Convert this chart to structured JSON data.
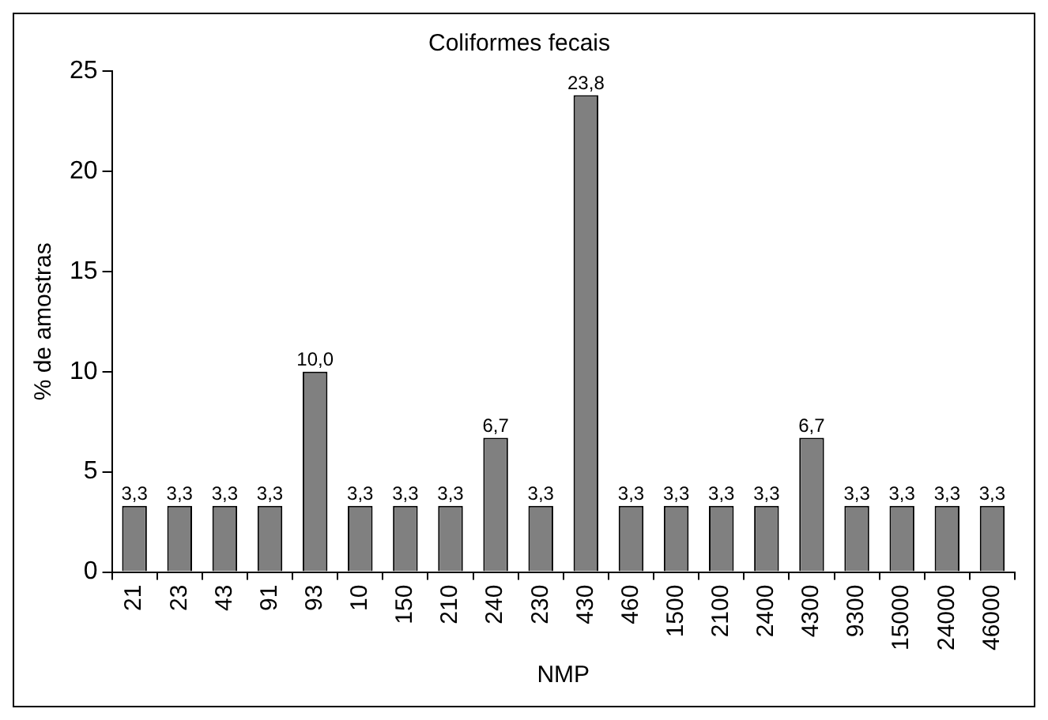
{
  "chart_data": {
    "type": "bar",
    "title": "Coliformes fecais",
    "xlabel": "NMP",
    "ylabel": "% de amostras",
    "categories": [
      "21",
      "23",
      "43",
      "91",
      "93",
      "10",
      "150",
      "210",
      "240",
      "230",
      "430",
      "460",
      "1500",
      "2100",
      "2400",
      "4300",
      "9300",
      "15000",
      "24000",
      "46000"
    ],
    "values": [
      3.3,
      3.3,
      3.3,
      3.3,
      10.0,
      3.3,
      3.3,
      3.3,
      6.7,
      3.3,
      23.8,
      3.3,
      3.3,
      3.3,
      3.3,
      6.7,
      3.3,
      3.3,
      3.3,
      3.3
    ],
    "value_labels": [
      "3,3",
      "3,3",
      "3,3",
      "3,3",
      "10,0",
      "3,3",
      "3,3",
      "3,3",
      "6,7",
      "3,3",
      "23,8",
      "3,3",
      "3,3",
      "3,3",
      "3,3",
      "6,7",
      "3,3",
      "3,3",
      "3,3",
      "3,3"
    ],
    "color": "#808080",
    "ylim": [
      0,
      25
    ],
    "yticks": [
      0,
      5,
      10,
      15,
      20,
      25
    ],
    "grid": false,
    "legend": false
  }
}
